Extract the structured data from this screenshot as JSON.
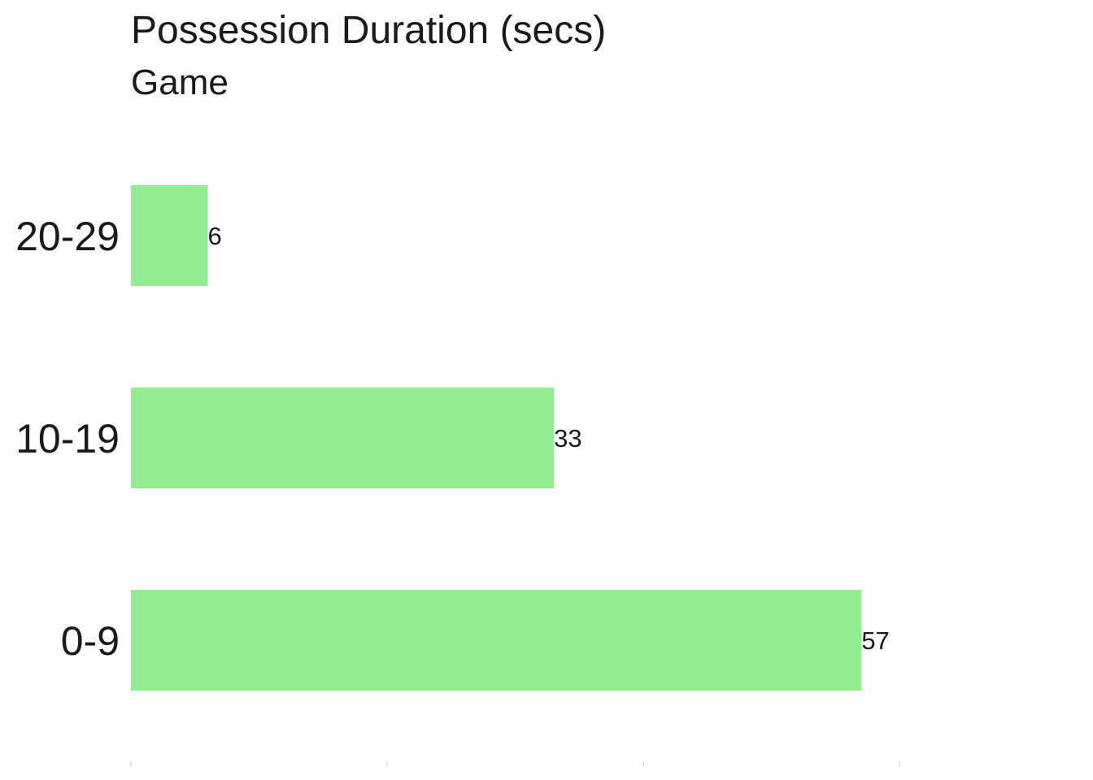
{
  "chart_data": {
    "type": "bar",
    "orientation": "horizontal",
    "title": "Possession Duration (secs)",
    "subtitle": "Game",
    "categories": [
      "0-9",
      "10-19",
      "20-29"
    ],
    "values": [
      57,
      33,
      6
    ],
    "data_labels": [
      "57",
      "33",
      "6"
    ],
    "xlim": [
      0,
      75
    ],
    "x_ticks": [
      0,
      20,
      40,
      60
    ],
    "x_tick_labels_visible": false,
    "grid": false,
    "legend": "none",
    "bar_color": "#90EE90"
  }
}
